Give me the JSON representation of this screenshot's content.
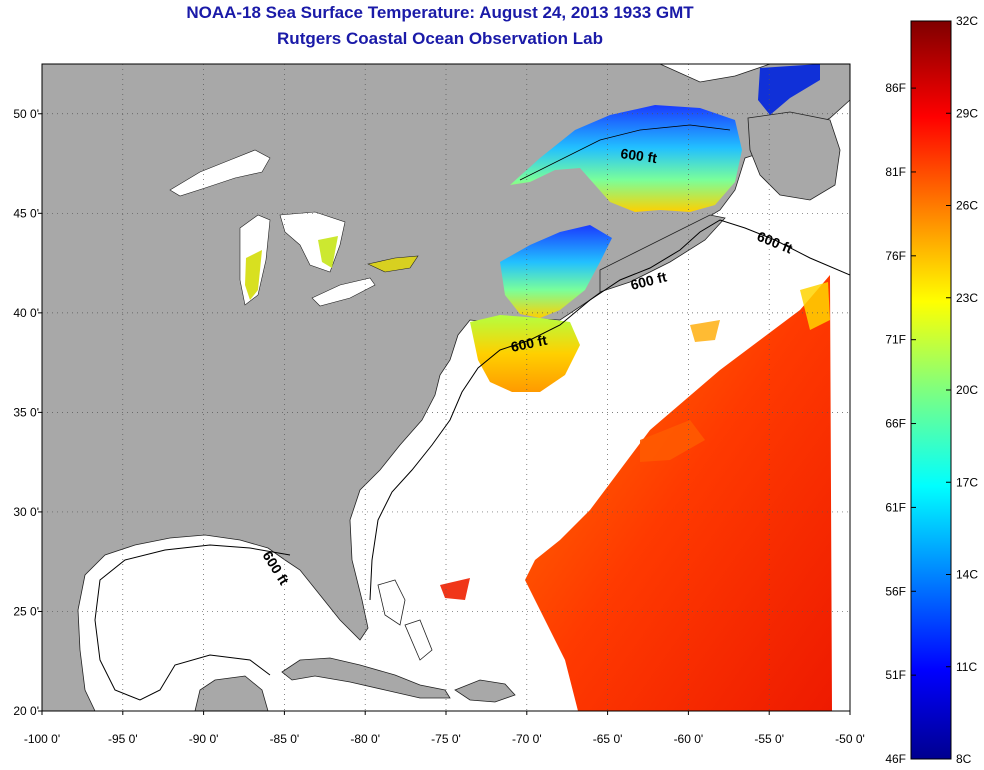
{
  "header": {
    "title": "NOAA-18 Sea Surface Temperature:  August 24, 2013 1933 GMT",
    "subtitle": "Rutgers Coastal Ocean Observation Lab"
  },
  "map": {
    "lon_range": [
      -100,
      -50
    ],
    "lat_range": [
      20,
      52.5
    ],
    "lon_ticks": [
      {
        "value": -100,
        "label": "-100 0'"
      },
      {
        "value": -95,
        "label": "-95 0'"
      },
      {
        "value": -90,
        "label": "-90 0'"
      },
      {
        "value": -85,
        "label": "-85 0'"
      },
      {
        "value": -80,
        "label": "-80 0'"
      },
      {
        "value": -75,
        "label": "-75 0'"
      },
      {
        "value": -70,
        "label": "-70 0'"
      },
      {
        "value": -65,
        "label": "-65 0'"
      },
      {
        "value": -60,
        "label": "-60 0'"
      },
      {
        "value": -55,
        "label": "-55 0'"
      },
      {
        "value": -50,
        "label": "-50 0'"
      }
    ],
    "lat_ticks": [
      {
        "value": 50,
        "label": "50 0'"
      },
      {
        "value": 45,
        "label": "45 0'"
      },
      {
        "value": 40,
        "label": "40 0'"
      },
      {
        "value": 35,
        "label": "35 0'"
      },
      {
        "value": 30,
        "label": "30 0'"
      },
      {
        "value": 25,
        "label": "25 0'"
      },
      {
        "value": 20,
        "label": "20 0'"
      }
    ],
    "contour_label": "600 ft",
    "colors": {
      "land": "#a8a8a8",
      "ocean": "#ffffff",
      "grid": "#555555",
      "title": "#1a1aa8"
    }
  },
  "colorbar": {
    "celsius_range": [
      8,
      32
    ],
    "fahrenheit_range": [
      46,
      90
    ],
    "celsius_labels": [
      "32C",
      "29C",
      "26C",
      "23C",
      "20C",
      "17C",
      "14C",
      "11C",
      "8C"
    ],
    "fahrenheit_labels": [
      "86F",
      "81F",
      "76F",
      "71F",
      "66F",
      "61F",
      "56F",
      "51F",
      "46F"
    ]
  }
}
